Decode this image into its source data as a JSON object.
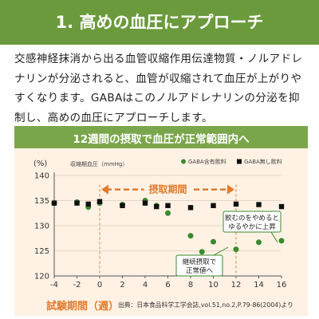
{
  "banner": {
    "title": "1. 高めの血圧にアプローチ"
  },
  "paragraph": "交感神経抹消から出る血管収縮作用伝達物質・ノルアドレナリンが分泌されると、血管が収縮されて血圧が上がりやすくなります。GABAはこのノルアドレナリンの分泌を抑制し、高めの血圧にアプローチします。",
  "chart_data": {
    "type": "scatter",
    "title": "12週間の摂取で血圧が正常範囲内へ",
    "ylabel": "収縮期血圧（mmHg）",
    "y_unit": "(%)",
    "xlabel": "試験期間（週）",
    "source": "出典：日本食品科学工学会誌,vol.51,no.2,P.79-86(2004)より",
    "xlim": [
      -4,
      16
    ],
    "ylim": [
      120,
      140
    ],
    "x_ticks": [
      -4,
      -2,
      0,
      2,
      4,
      6,
      8,
      10,
      12,
      14,
      16
    ],
    "y_ticks": [
      120,
      125,
      130,
      135,
      140
    ],
    "intake_period": {
      "label": "摂取期間",
      "x_range": [
        0,
        12
      ]
    },
    "series": [
      {
        "name": "GABA含有飲料",
        "marker": "circle",
        "color": "#3a8a2e",
        "x": [
          -4,
          -2,
          -1,
          0,
          2,
          4,
          5,
          6,
          8,
          9,
          10,
          12,
          14,
          16
        ],
        "y": [
          134.5,
          134.7,
          133.7,
          134.5,
          134.2,
          135.0,
          134.0,
          132.5,
          128.0,
          124.8,
          126.8,
          125.3,
          126.7,
          127.0
        ]
      },
      {
        "name": "GABA無し飲料",
        "marker": "square",
        "color": "#111111",
        "x": [
          -4,
          -2,
          -1,
          0,
          2,
          4,
          5,
          6,
          8,
          10,
          12,
          14,
          16
        ],
        "y": [
          134.5,
          134.5,
          134.3,
          134.8,
          134.0,
          134.5,
          133.8,
          134.0,
          133.6,
          134.0,
          134.3,
          134.2,
          133.8
        ]
      }
    ],
    "annotations": [
      {
        "text": "飲むのをやめると\nゆるやかに上昇"
      },
      {
        "text": "継続摂取で\n正常値へ"
      }
    ]
  },
  "colors": {
    "banner": "#6a9a3c",
    "chart_header": "#7aa64b",
    "accent": "#e07a2c",
    "gaba": "#3a8a2e",
    "control": "#111111"
  }
}
